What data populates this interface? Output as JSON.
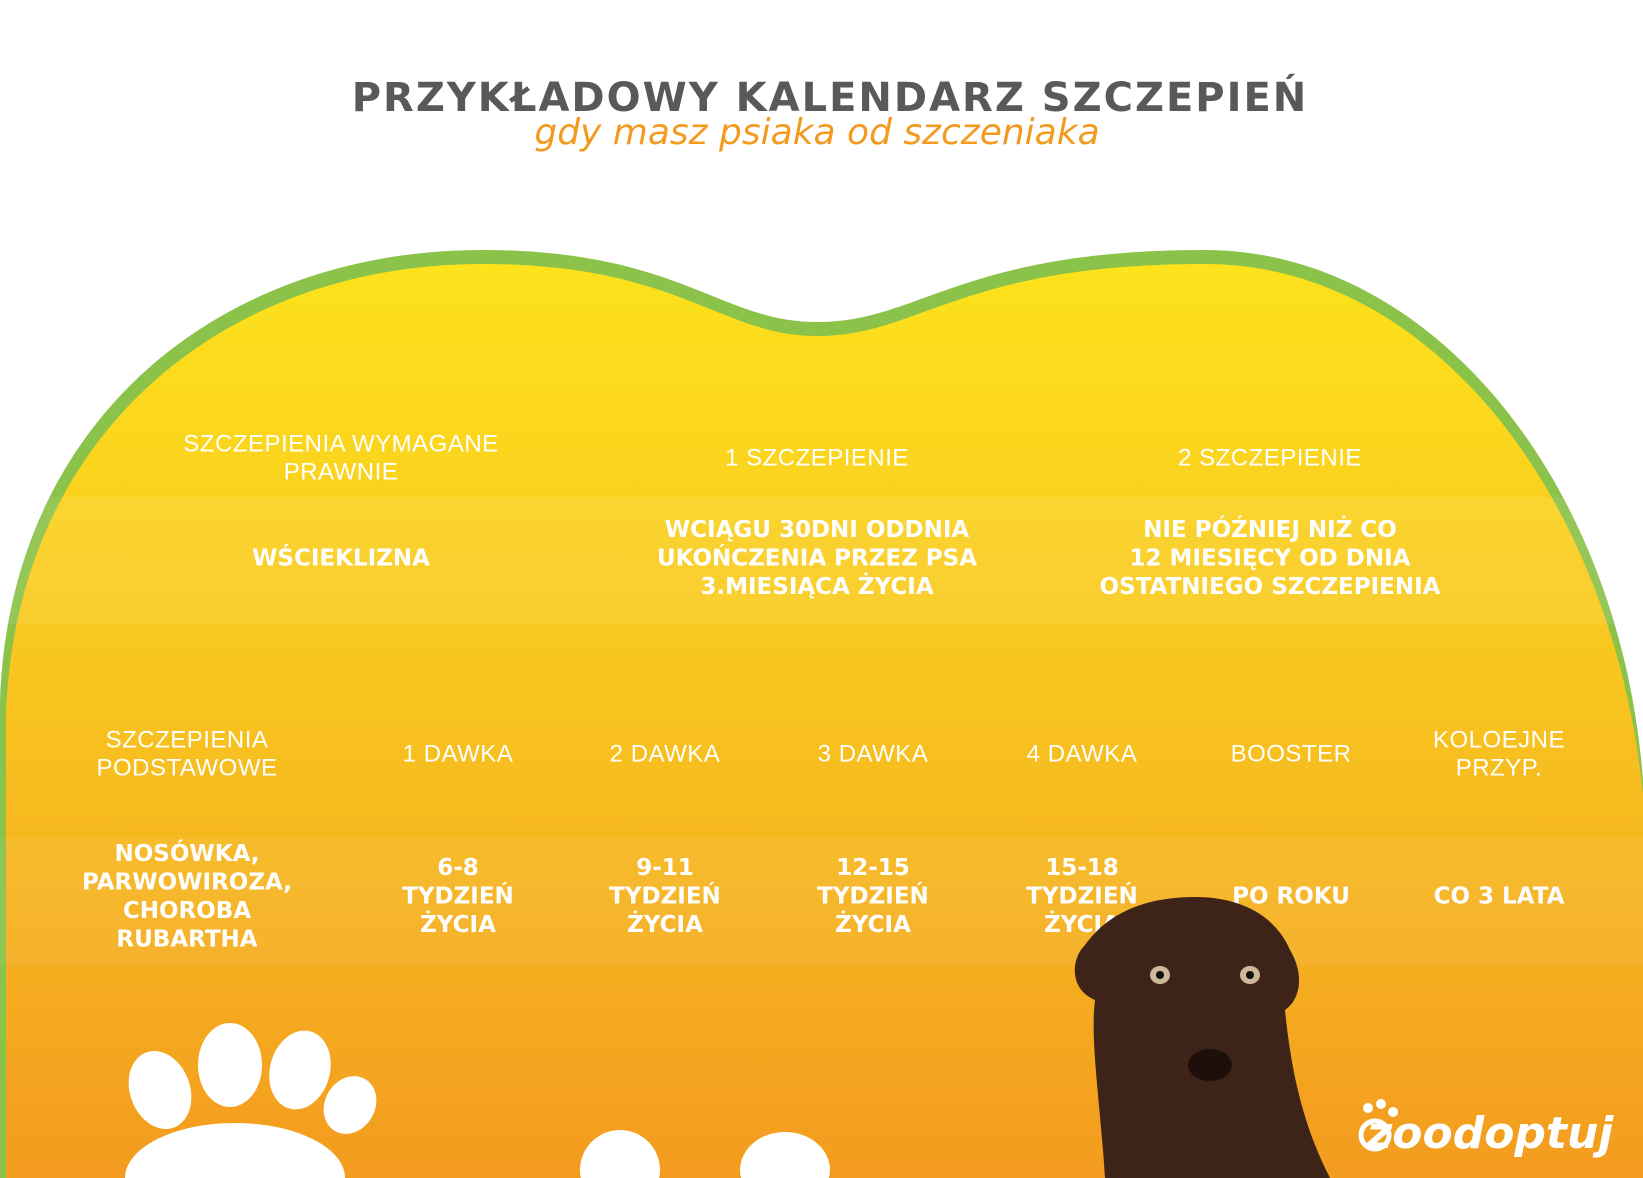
{
  "header": {
    "title": "PRZYKŁADOWY KALENDARZ SZCZEPIEŃ",
    "subtitle": "gdy masz psiaka od szczeniaka"
  },
  "table_top": {
    "columns": [
      {
        "header": [
          "SZCZEPIENIA WYMAGANE",
          "PRAWNIE"
        ],
        "cell": [
          "WŚCIEKLIZNA"
        ]
      },
      {
        "header": [
          "1 SZCZEPIENIE"
        ],
        "cell": [
          "WCIĄGU 30DNI ODDNIA",
          "UKOŃCZENIA PRZEZ PSA",
          "3.MIESIĄCA ŻYCIA"
        ]
      },
      {
        "header": [
          "2 SZCZEPIENIE"
        ],
        "cell": [
          "NIE PÓŹNIEJ NIŻ CO",
          "12 MIESIĘCY OD DNIA",
          "OSTATNIEGO SZCZEPIENIA"
        ]
      }
    ]
  },
  "table_bottom": {
    "columns": [
      {
        "header": [
          "SZCZEPIENIA",
          "PODSTAWOWE"
        ],
        "cell": [
          "NOSÓWKA,",
          "PARWOWIROZA,",
          "CHOROBA",
          "RUBARTHA"
        ]
      },
      {
        "header": [
          "1 DAWKA"
        ],
        "cell": [
          "6-8",
          "TYDZIEŃ",
          "ŻYCIA"
        ]
      },
      {
        "header": [
          "2 DAWKA"
        ],
        "cell": [
          "9-11",
          "TYDZIEŃ",
          "ŻYCIA"
        ]
      },
      {
        "header": [
          "3 DAWKA"
        ],
        "cell": [
          "12-15",
          "TYDZIEŃ",
          "ŻYCIA"
        ]
      },
      {
        "header": [
          "4 DAWKA"
        ],
        "cell": [
          "15-18",
          "TYDZIEŃ",
          "ŻYCIA"
        ]
      },
      {
        "header": [
          "BOOSTER"
        ],
        "cell": [
          "PO ROKU"
        ]
      },
      {
        "header": [
          "KOLOEJNE",
          "PRZYP."
        ],
        "cell": [
          "CO 3 LATA"
        ]
      }
    ]
  },
  "logo": {
    "text": "zoodoptuj"
  }
}
